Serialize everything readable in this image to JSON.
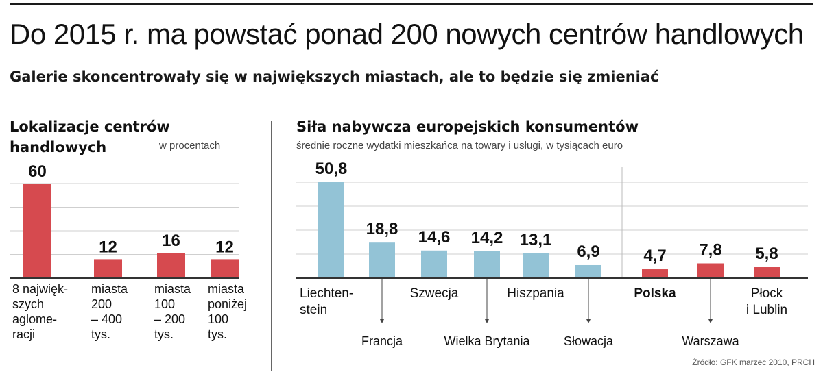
{
  "title": "Do 2015 r. ma powstać ponad 200 nowych centrów handlowych",
  "subtitle": "Galerie skoncentrowały się w największych miastach, ale to będzie się zmieniać",
  "source": "Źródło: GFK marzec 2010, PRCH",
  "colors": {
    "red": "#d64a4f",
    "blue": "#93c3d6",
    "grid": "#cfcfcf",
    "axis": "#333333",
    "text": "#111111"
  },
  "chart_data": [
    {
      "type": "bar",
      "title_lines": [
        "Lokalizacje centrów",
        "handlowych"
      ],
      "unit": "w procentach",
      "categories": [
        [
          "8 najwięk-",
          "szych",
          "aglome-",
          "racji"
        ],
        [
          "miasta",
          "200",
          "– 400",
          "tys."
        ],
        [
          "miasta",
          "100",
          "– 200",
          "tys."
        ],
        [
          "miasta",
          "poniżej",
          "100",
          "tys."
        ]
      ],
      "values": [
        60,
        12,
        16,
        12
      ],
      "value_labels": [
        "60",
        "12",
        "16",
        "12"
      ],
      "ylim": [
        0,
        60
      ],
      "grid": true,
      "legend": "none"
    },
    {
      "type": "bar",
      "title": "Siła nabywcza europejskich konsumentów",
      "subtitle": "średnie roczne wydatki mieszkańca na towary i usługi, w tysiącach euro",
      "categories": [
        "Liechtenstein",
        "Francja",
        "Szwecja",
        "Wielka Brytania",
        "Hiszpania",
        "Słowacja",
        "Polska",
        "Warszawa",
        "Płock i Lublin"
      ],
      "category_labels": [
        {
          "lines": [
            "Liechten-",
            "stein"
          ],
          "placement": "below",
          "bold": false
        },
        {
          "lines": [
            "Francja"
          ],
          "placement": "pointer",
          "bold": false
        },
        {
          "lines": [
            "Szwecja"
          ],
          "placement": "below",
          "bold": false
        },
        {
          "lines": [
            "Wielka Brytania"
          ],
          "placement": "pointer",
          "bold": false
        },
        {
          "lines": [
            "Hiszpania"
          ],
          "placement": "below",
          "bold": false
        },
        {
          "lines": [
            "Słowacja"
          ],
          "placement": "pointer",
          "bold": false
        },
        {
          "lines": [
            "Polska"
          ],
          "placement": "below",
          "bold": true
        },
        {
          "lines": [
            "Warszawa"
          ],
          "placement": "pointer",
          "bold": false
        },
        {
          "lines": [
            "Płock",
            "i Lublin"
          ],
          "placement": "below",
          "bold": false
        }
      ],
      "values": [
        50.8,
        18.8,
        14.6,
        14.2,
        13.1,
        6.9,
        4.7,
        7.8,
        5.8
      ],
      "value_labels": [
        "50,8",
        "18,8",
        "14,6",
        "14,2",
        "13,1",
        "6,9",
        "4,7",
        "7,8",
        "5,8"
      ],
      "series_color_keys": [
        "blue",
        "blue",
        "blue",
        "blue",
        "blue",
        "blue",
        "red",
        "red",
        "red"
      ],
      "ylim": [
        0,
        50.8
      ],
      "grid": true,
      "legend": "none"
    }
  ]
}
